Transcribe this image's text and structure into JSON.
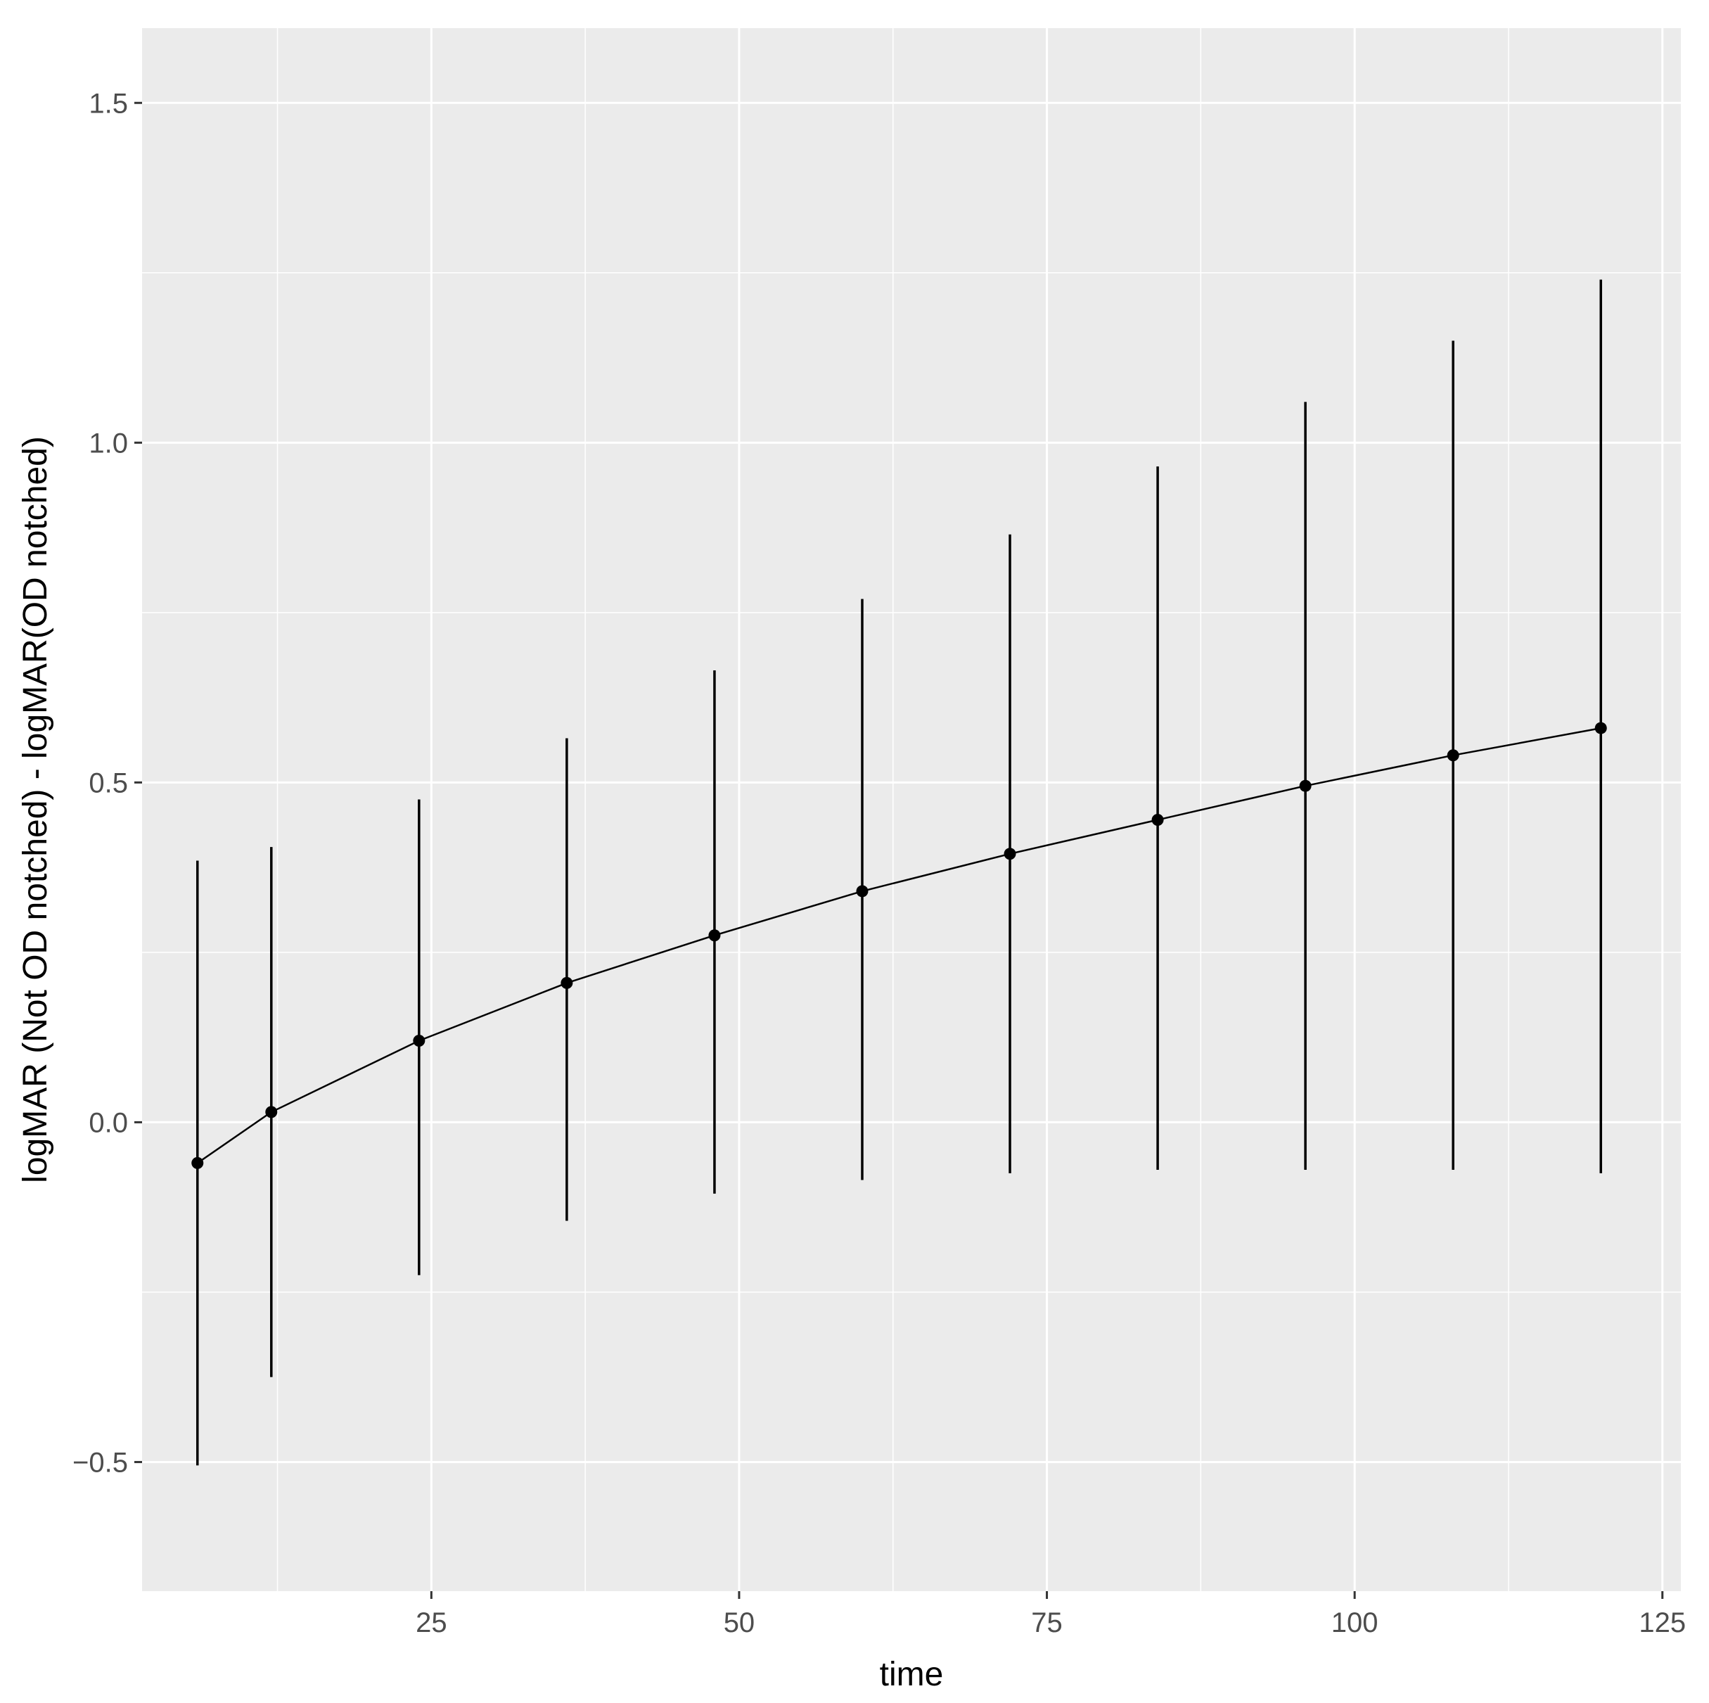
{
  "chart_data": {
    "type": "line",
    "title": "",
    "xlabel": "time",
    "ylabel": "logMAR (Not OD notched) - logMAR(OD notched)",
    "xlim": [
      1.5,
      126.5
    ],
    "ylim": [
      -0.69,
      1.61
    ],
    "x_ticks": [
      25,
      50,
      75,
      100,
      125
    ],
    "x_tick_labels": [
      "25",
      "50",
      "75",
      "100",
      "125"
    ],
    "y_ticks": [
      -0.5,
      0.0,
      0.5,
      1.0,
      1.5
    ],
    "y_tick_labels": [
      "−0.5",
      "0.0",
      "0.5",
      "1.0",
      "1.5"
    ],
    "grid": true,
    "legend": "none",
    "series": [
      {
        "x": [
          6,
          12,
          24,
          36,
          48,
          60,
          72,
          84,
          96,
          108,
          120
        ],
        "y": [
          -0.06,
          0.015,
          0.12,
          0.205,
          0.275,
          0.34,
          0.395,
          0.445,
          0.495,
          0.54,
          0.58
        ],
        "lower": [
          -0.505,
          -0.375,
          -0.225,
          -0.145,
          -0.105,
          -0.085,
          -0.075,
          -0.07,
          -0.07,
          -0.07,
          -0.075
        ],
        "upper": [
          0.385,
          0.405,
          0.475,
          0.565,
          0.665,
          0.77,
          0.865,
          0.965,
          1.06,
          1.15,
          1.24
        ]
      }
    ]
  },
  "colors": {
    "panel_background": "#EBEBEB",
    "grid_line": "#FFFFFF",
    "data_mark": "#000000",
    "tick_text": "#4D4D4D",
    "axis_title": "#000000"
  }
}
